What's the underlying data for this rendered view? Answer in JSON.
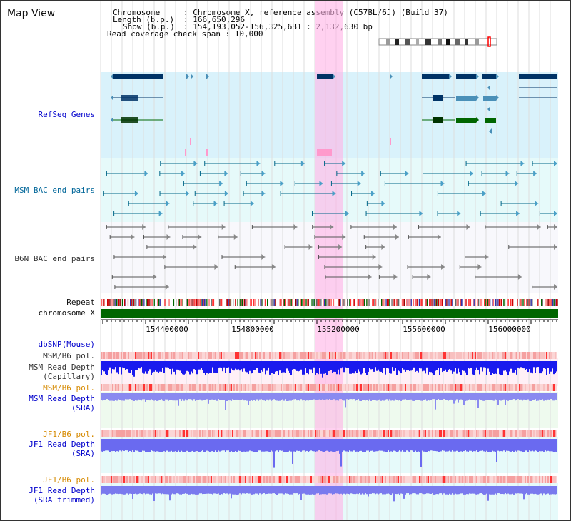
{
  "title": "Map View",
  "info": {
    "chromosome_key": "Chromosome",
    "chromosome_val": ": Chromosome X, reference assembly (C57BL/6J) (Build 37)",
    "length_key": "Length (b.p.)",
    "length_val": ": 166,650,296",
    "show_key": "Show (b.p.)",
    "show_val": ": 154,193,052-156,325,681 : 2,132,630 bp",
    "coverage": "Read coverage check span : 10,000"
  },
  "tracks": {
    "refseq": "RefSeq Genes",
    "msm_bac": "MSM BAC end pairs",
    "b6n_bac": "B6N BAC end pairs",
    "repeat": "Repeat",
    "chromosome": "chromosome X",
    "dbsnp": "dbSNP(Mouse)",
    "msm_b6_pol_1": "MSM/B6 pol.",
    "msm_depth_cap_1": "MSM Read Depth",
    "msm_depth_cap_2": "(Capillary)",
    "msm_b6_pol_2": "MSM/B6 pol.",
    "msm_depth_sra_1": "MSM Read Depth",
    "msm_depth_sra_2": "(SRA)",
    "jf1_b6_pol_1": "JF1/B6 pol.",
    "jf1_depth_sra_1": "JF1 Read Depth",
    "jf1_depth_sra_2": "(SRA)",
    "jf1_b6_pol_2": "JF1/B6 pol.",
    "jf1_depth_trim_1": "JF1 Read Depth",
    "jf1_depth_trim_2": "(SRA trimmed)"
  },
  "axis": {
    "ticks": [
      "154400000",
      "154800000",
      "155200000",
      "155600000",
      "156000000"
    ]
  },
  "colors": {
    "refseq_bg": "#d9f2fb",
    "msm_bg": "#e6fafa",
    "gene_dark": "#003366",
    "gene_mid": "#4a90b8",
    "gene_green": "#006600",
    "highlight": "#ffb3e6",
    "chromosome_bar": "#006600"
  }
}
